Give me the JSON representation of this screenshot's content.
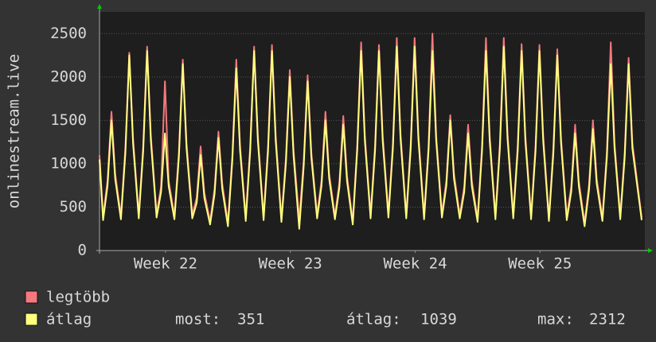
{
  "chart_data": {
    "type": "line",
    "ylabel": "onlinestream.live",
    "x": [
      0,
      0.2,
      0.45,
      0.67,
      0.88,
      1.2,
      1.45,
      1.67,
      1.88,
      2.2,
      2.45,
      2.67,
      2.88,
      3.2,
      3.45,
      3.67,
      3.88,
      4.2,
      4.45,
      4.67,
      4.88,
      5.2,
      5.45,
      5.67,
      5.88,
      6.2,
      6.45,
      6.67,
      6.88,
      7.2,
      7.45,
      7.67,
      7.88,
      8.2,
      8.45,
      8.67,
      8.88,
      9.2,
      9.45,
      9.67,
      9.88,
      10.2,
      10.45,
      10.67,
      10.88,
      11.2,
      11.45,
      11.67,
      11.88,
      12.2,
      12.45,
      12.67,
      12.88,
      13.2,
      13.45,
      13.67,
      13.88,
      14.2,
      14.45,
      14.67,
      14.88,
      15.2,
      15.45,
      15.67,
      15.88,
      16.2,
      16.45,
      16.67,
      16.88,
      17.2,
      17.45,
      17.67,
      17.88,
      18.2,
      18.45,
      18.67,
      18.88,
      19.2,
      19.45,
      19.67,
      19.88,
      20.2,
      20.45,
      20.67,
      20.88,
      21.2,
      21.45,
      21.67,
      21.88,
      22.2,
      22.45,
      22.67,
      22.88,
      23.2,
      23.45,
      23.67,
      23.88,
      24.2,
      24.45,
      24.67,
      24.88,
      25.2,
      25.45,
      25.67,
      25.88,
      26.2,
      26.45,
      26.67,
      26.88,
      27.2,
      27.45,
      27.67,
      27.88,
      28.2,
      28.45,
      28.67,
      28.88,
      29.2,
      29.45,
      29.67,
      29.88,
      30.4
    ],
    "series": [
      {
        "name": "legtöbb",
        "color": "#f4787e",
        "values": [
          1100,
          390,
          810,
          1600,
          885,
          400,
          1185,
          2280,
          1300,
          410,
          1210,
          2350,
          1325,
          420,
          735,
          1950,
          800,
          400,
          1135,
          2200,
          1240,
          410,
          610,
          1200,
          665,
          340,
          710,
          1370,
          775,
          320,
          1110,
          2200,
          1215,
          380,
          1210,
          2350,
          1325,
          390,
          1210,
          2370,
          1325,
          370,
          1060,
          2080,
          1160,
          360,
          1035,
          2020,
          1130,
          410,
          810,
          1600,
          885,
          400,
          785,
          1550,
          860,
          340,
          1210,
          2400,
          1325,
          410,
          1210,
          2370,
          1325,
          420,
          1235,
          2450,
          1350,
          410,
          1235,
          2450,
          1350,
          400,
          1210,
          2500,
          1325,
          420,
          810,
          1560,
          885,
          410,
          735,
          1450,
          800,
          370,
          1210,
          2450,
          1325,
          400,
          1235,
          2450,
          1350,
          410,
          1210,
          2380,
          1325,
          400,
          1210,
          2370,
          1325,
          380,
          1185,
          2320,
          1300,
          390,
          735,
          1450,
          800,
          320,
          760,
          1500,
          830,
          380,
          1135,
          2400,
          1240,
          400,
          1135,
          2220,
          1240,
          380
        ]
      },
      {
        "name": "átlag",
        "color": "#ffff80",
        "values": [
          1050,
          350,
          750,
          1500,
          825,
          360,
          1125,
          2250,
          1240,
          370,
          1150,
          2300,
          1265,
          380,
          675,
          1350,
          740,
          360,
          1075,
          2150,
          1180,
          370,
          550,
          1100,
          605,
          300,
          650,
          1300,
          715,
          280,
          1050,
          2100,
          1155,
          340,
          1150,
          2300,
          1265,
          350,
          1150,
          2300,
          1265,
          330,
          1000,
          2000,
          1100,
          250,
          975,
          1950,
          1070,
          370,
          750,
          1500,
          825,
          360,
          725,
          1450,
          800,
          300,
          1150,
          2300,
          1265,
          370,
          1150,
          2300,
          1265,
          380,
          1175,
          2350,
          1290,
          370,
          1175,
          2350,
          1290,
          360,
          1150,
          2300,
          1265,
          380,
          750,
          1500,
          825,
          370,
          675,
          1350,
          740,
          330,
          1150,
          2300,
          1265,
          360,
          1175,
          2350,
          1290,
          370,
          1150,
          2300,
          1265,
          360,
          1150,
          2300,
          1265,
          340,
          1125,
          2250,
          1240,
          350,
          675,
          1350,
          740,
          280,
          700,
          1400,
          770,
          340,
          1075,
          2150,
          1180,
          360,
          1075,
          2150,
          1180,
          351
        ]
      }
    ],
    "xlim": [
      0,
      30.58
    ],
    "xticks": [
      {
        "value": 3.7,
        "label": "Week 22"
      },
      {
        "value": 10.7,
        "label": "Week 23"
      },
      {
        "value": 17.7,
        "label": "Week 24"
      },
      {
        "value": 24.7,
        "label": "Week 25"
      }
    ],
    "ylim": [
      0,
      2750
    ],
    "yticks": [
      0,
      500,
      1000,
      1500,
      2000,
      2500
    ],
    "grid": true,
    "stats": [
      {
        "label": "most:",
        "value": 351
      },
      {
        "label": "átlag:",
        "value": 1039
      },
      {
        "label": "max:",
        "value": 2312
      }
    ]
  }
}
